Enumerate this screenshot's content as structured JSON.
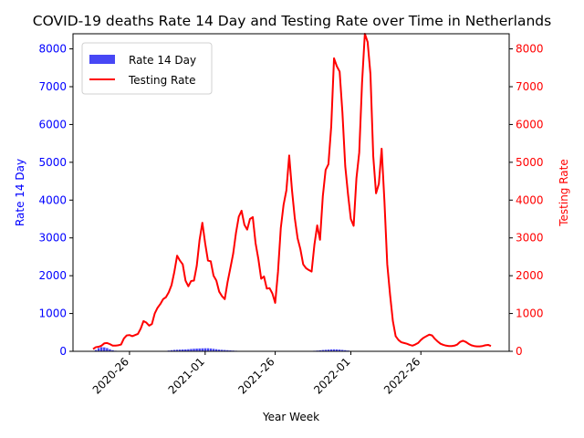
{
  "chart_data": {
    "type": "bar+line",
    "title": "COVID-19 deaths Rate 14 Day and Testing Rate over Time in Netherlands",
    "xlabel": "Year Week",
    "ylabel_left": "Rate 14 Day",
    "ylabel_right": "Testing Rate",
    "ylim_left": [
      0,
      8400
    ],
    "ylim_right": [
      0,
      8400
    ],
    "left_ticks": [
      0,
      1000,
      2000,
      3000,
      4000,
      5000,
      6000,
      7000,
      8000
    ],
    "right_ticks": [
      0,
      1000,
      2000,
      3000,
      4000,
      5000,
      6000,
      7000,
      8000
    ],
    "x_ticks": [
      {
        "label": "2020-26",
        "index": 13
      },
      {
        "label": "2021-01",
        "index": 40
      },
      {
        "label": "2021-26",
        "index": 65
      },
      {
        "label": "2022-01",
        "index": 92
      },
      {
        "label": "2022-26",
        "index": 117
      }
    ],
    "grid": false,
    "legend": {
      "position": "top-left",
      "entries": [
        "Rate 14 Day",
        "Testing Rate"
      ]
    },
    "colors": {
      "left_axis": "#0000ff",
      "right_axis": "#ff0000",
      "bar": "#4747f5",
      "line": "#ff0000"
    },
    "x_start": "2020-13",
    "series": [
      {
        "name": "Rate 14 Day",
        "kind": "bar",
        "values": [
          0,
          35,
          85,
          110,
          105,
          85,
          55,
          30,
          15,
          8,
          5,
          3,
          2,
          2,
          2,
          2,
          2,
          2,
          2,
          2,
          2,
          2,
          2,
          2,
          3,
          5,
          10,
          20,
          30,
          38,
          42,
          45,
          48,
          50,
          55,
          62,
          68,
          72,
          75,
          78,
          80,
          80,
          75,
          65,
          55,
          45,
          40,
          35,
          30,
          25,
          20,
          15,
          12,
          10,
          8,
          6,
          5,
          4,
          3,
          3,
          2,
          2,
          2,
          2,
          2,
          2,
          2,
          2,
          2,
          2,
          2,
          2,
          2,
          2,
          2,
          3,
          4,
          6,
          10,
          15,
          20,
          28,
          35,
          40,
          45,
          50,
          52,
          50,
          45,
          38,
          30,
          20,
          12,
          8,
          6,
          5,
          4,
          3,
          3,
          2,
          2,
          2,
          2,
          2,
          2,
          2,
          2,
          2,
          2,
          2,
          2,
          2,
          2,
          2,
          2,
          2,
          2,
          2,
          2,
          2,
          2,
          2,
          2,
          2,
          2,
          2,
          2,
          2,
          2,
          2,
          2,
          2,
          2,
          2,
          2,
          2,
          2,
          2
        ]
      },
      {
        "name": "Testing Rate",
        "kind": "line",
        "values": [
          60,
          110,
          120,
          150,
          210,
          220,
          190,
          150,
          150,
          160,
          180,
          340,
          420,
          430,
          400,
          430,
          460,
          600,
          800,
          760,
          680,
          720,
          1000,
          1150,
          1250,
          1380,
          1430,
          1560,
          1750,
          2100,
          2530,
          2400,
          2300,
          1870,
          1720,
          1860,
          1870,
          2260,
          2940,
          3400,
          2860,
          2400,
          2380,
          2000,
          1870,
          1580,
          1460,
          1380,
          1830,
          2200,
          2580,
          3130,
          3560,
          3720,
          3350,
          3220,
          3500,
          3550,
          2860,
          2440,
          1920,
          1980,
          1660,
          1670,
          1530,
          1280,
          2100,
          3260,
          3880,
          4260,
          5180,
          4260,
          3520,
          2990,
          2700,
          2300,
          2200,
          2150,
          2110,
          2820,
          3330,
          2950,
          4100,
          4800,
          4950,
          5950,
          7750,
          7540,
          7400,
          6310,
          4900,
          4150,
          3500,
          3320,
          4580,
          5260,
          7100,
          8400,
          8180,
          7330,
          5160,
          4180,
          4430,
          5360,
          3960,
          2300,
          1500,
          800,
          400,
          300,
          240,
          220,
          200,
          170,
          150,
          180,
          220,
          300,
          360,
          400,
          440,
          420,
          330,
          260,
          200,
          170,
          150,
          140,
          140,
          150,
          180,
          250,
          280,
          250,
          200,
          160,
          140,
          130,
          130,
          140,
          160,
          170,
          140
        ]
      }
    ]
  }
}
